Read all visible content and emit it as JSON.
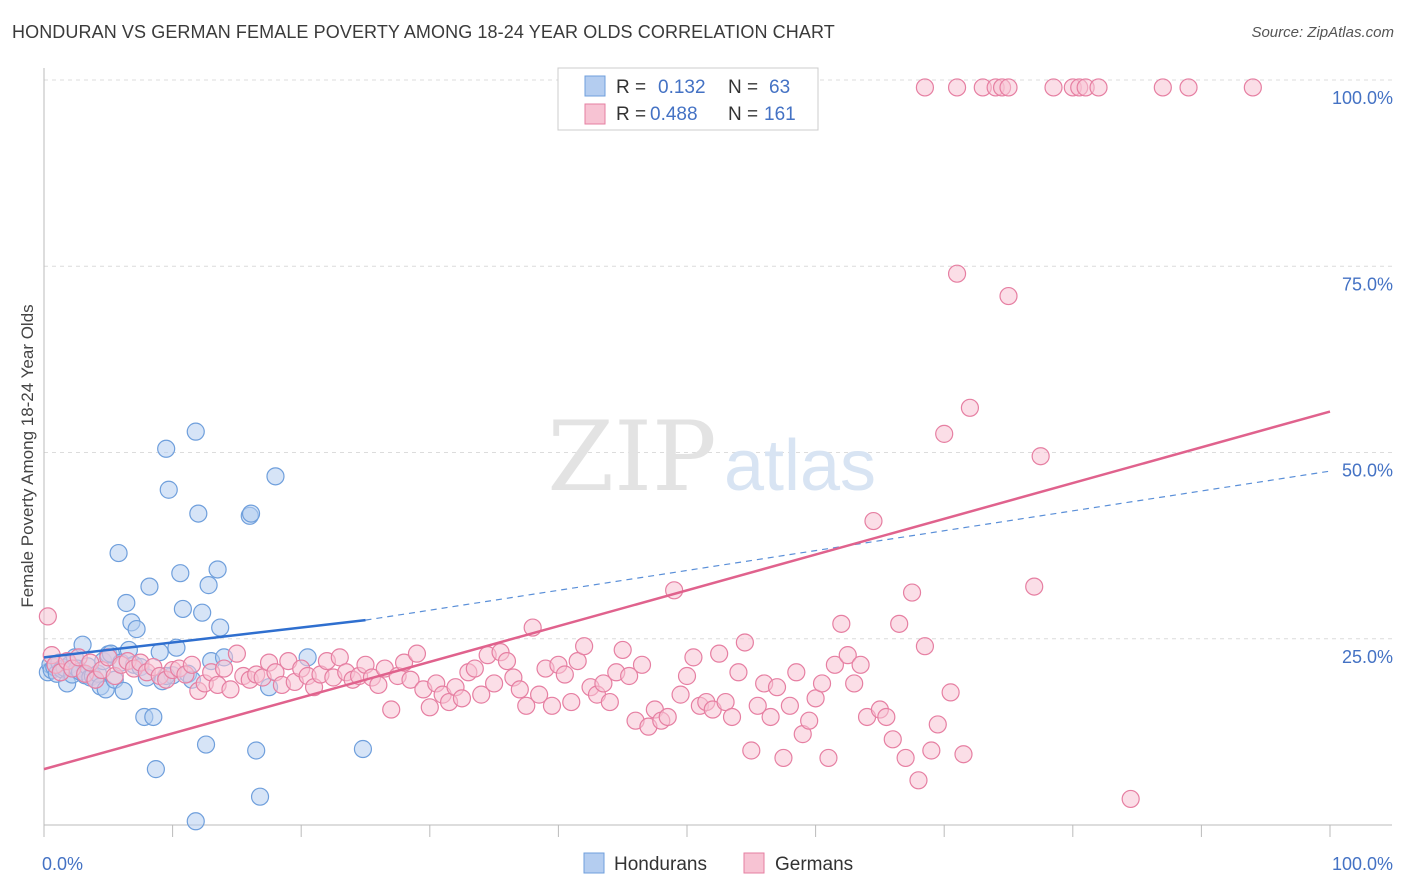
{
  "title": "HONDURAN VS GERMAN FEMALE POVERTY AMONG 18-24 YEAR OLDS CORRELATION CHART",
  "source": "Source: ZipAtlas.com",
  "watermark": {
    "zip": "ZIP",
    "atlas": "atlas"
  },
  "chart_data": {
    "type": "scatter",
    "ylabel": "Female Poverty Among 18-24 Year Olds",
    "xlim": [
      0,
      100
    ],
    "ylim": [
      0,
      100
    ],
    "x_ticks": [
      "0.0%",
      "100.0%"
    ],
    "y_ticks": [
      {
        "value": 100,
        "label": "100.0%"
      },
      {
        "value": 75,
        "label": "75.0%"
      },
      {
        "value": 50,
        "label": "50.0%"
      },
      {
        "value": 25,
        "label": "25.0%"
      }
    ],
    "grid": true,
    "legend": {
      "placement": "top-center",
      "r_label": "R =",
      "n_label": "N =",
      "entries": [
        {
          "series": "Hondurans",
          "r": "0.132",
          "n": "63"
        },
        {
          "series": "Germans",
          "r": "0.488",
          "n": "161"
        }
      ]
    },
    "series": [
      {
        "name": "Hondurans",
        "color": "#6f9fdc",
        "fill": "#b4cdf0",
        "trend": {
          "x0": 0,
          "y0": 22.5,
          "x1": 25,
          "y1": 27.5,
          "dashed_to": 100,
          "dashed_y1": 47.5
        },
        "points": [
          [
            0.3,
            20.5
          ],
          [
            0.5,
            21.5
          ],
          [
            0.6,
            20.8
          ],
          [
            0.8,
            21.2
          ],
          [
            1.0,
            20.3
          ],
          [
            1.2,
            21.8
          ],
          [
            1.4,
            20.9
          ],
          [
            1.6,
            21.1
          ],
          [
            1.8,
            19.0
          ],
          [
            2.0,
            21.5
          ],
          [
            2.2,
            20.2
          ],
          [
            2.4,
            22.5
          ],
          [
            2.6,
            21.0
          ],
          [
            2.8,
            20.6
          ],
          [
            3.0,
            24.2
          ],
          [
            3.2,
            20.1
          ],
          [
            3.4,
            21.3
          ],
          [
            3.6,
            19.8
          ],
          [
            3.8,
            20.0
          ],
          [
            4.0,
            19.5
          ],
          [
            4.2,
            20.3
          ],
          [
            4.4,
            18.6
          ],
          [
            4.6,
            22.0
          ],
          [
            4.8,
            18.2
          ],
          [
            5.0,
            22.9
          ],
          [
            5.2,
            23.0
          ],
          [
            5.5,
            19.5
          ],
          [
            5.8,
            36.5
          ],
          [
            6.0,
            21.8
          ],
          [
            6.2,
            18.0
          ],
          [
            6.4,
            29.8
          ],
          [
            6.6,
            23.5
          ],
          [
            6.8,
            27.2
          ],
          [
            7.0,
            21.5
          ],
          [
            7.2,
            26.3
          ],
          [
            7.5,
            21.2
          ],
          [
            7.8,
            14.5
          ],
          [
            8.0,
            19.8
          ],
          [
            8.2,
            32.0
          ],
          [
            8.5,
            14.5
          ],
          [
            8.7,
            7.5
          ],
          [
            9.0,
            23.2
          ],
          [
            9.2,
            19.3
          ],
          [
            9.5,
            50.5
          ],
          [
            9.7,
            45.0
          ],
          [
            10.0,
            20.1
          ],
          [
            10.3,
            23.8
          ],
          [
            10.6,
            33.8
          ],
          [
            10.8,
            29.0
          ],
          [
            11.2,
            20.3
          ],
          [
            11.5,
            19.5
          ],
          [
            11.8,
            0.5
          ],
          [
            12.0,
            41.8
          ],
          [
            12.3,
            28.5
          ],
          [
            12.6,
            10.8
          ],
          [
            12.8,
            32.2
          ],
          [
            13.0,
            22.0
          ],
          [
            13.5,
            34.3
          ],
          [
            13.7,
            26.5
          ],
          [
            14.0,
            22.5
          ],
          [
            16.0,
            41.5
          ],
          [
            16.5,
            10.0
          ],
          [
            16.8,
            3.8
          ],
          [
            17.5,
            18.5
          ],
          [
            18.0,
            46.8
          ],
          [
            20.5,
            22.5
          ],
          [
            24.8,
            10.2
          ],
          [
            16.1,
            41.8
          ],
          [
            11.8,
            52.8
          ],
          [
            9.5,
            20.0
          ]
        ]
      },
      {
        "name": "Germans",
        "color": "#e67fa2",
        "fill": "#f7c3d3",
        "trend": {
          "x0": 0,
          "y0": 7.5,
          "x1": 100,
          "y1": 55.5
        },
        "points": [
          [
            0.3,
            28.0
          ],
          [
            0.6,
            22.8
          ],
          [
            0.9,
            21.5
          ],
          [
            1.3,
            20.5
          ],
          [
            1.8,
            22.0
          ],
          [
            2.2,
            21.0
          ],
          [
            2.7,
            22.5
          ],
          [
            3.2,
            20.3
          ],
          [
            3.6,
            21.8
          ],
          [
            4.0,
            19.5
          ],
          [
            4.5,
            20.8
          ],
          [
            5.0,
            22.5
          ],
          [
            5.5,
            20.0
          ],
          [
            6.0,
            21.5
          ],
          [
            6.5,
            22.0
          ],
          [
            7.0,
            21.0
          ],
          [
            7.5,
            21.8
          ],
          [
            8.0,
            20.5
          ],
          [
            8.5,
            21.2
          ],
          [
            9.0,
            20.0
          ],
          [
            9.5,
            19.5
          ],
          [
            10.0,
            20.8
          ],
          [
            10.5,
            21.0
          ],
          [
            11.0,
            20.2
          ],
          [
            11.5,
            21.5
          ],
          [
            12.0,
            18.0
          ],
          [
            12.5,
            19.0
          ],
          [
            13.0,
            20.5
          ],
          [
            13.5,
            18.8
          ],
          [
            14.0,
            21.0
          ],
          [
            14.5,
            18.2
          ],
          [
            15.0,
            23.0
          ],
          [
            15.5,
            20.0
          ],
          [
            16.0,
            19.5
          ],
          [
            16.5,
            20.2
          ],
          [
            17.0,
            19.8
          ],
          [
            17.5,
            21.8
          ],
          [
            18.0,
            20.5
          ],
          [
            18.5,
            18.8
          ],
          [
            19.0,
            22.0
          ],
          [
            19.5,
            19.2
          ],
          [
            20.0,
            21.0
          ],
          [
            20.5,
            20.0
          ],
          [
            21.0,
            18.5
          ],
          [
            21.5,
            20.2
          ],
          [
            22.0,
            22.0
          ],
          [
            22.5,
            19.8
          ],
          [
            23.0,
            22.5
          ],
          [
            23.5,
            20.5
          ],
          [
            24.0,
            19.5
          ],
          [
            24.5,
            20.0
          ],
          [
            25.0,
            21.5
          ],
          [
            25.5,
            19.8
          ],
          [
            26.0,
            18.8
          ],
          [
            26.5,
            21.0
          ],
          [
            27.0,
            15.5
          ],
          [
            27.5,
            20.0
          ],
          [
            28.0,
            21.8
          ],
          [
            28.5,
            19.5
          ],
          [
            29.0,
            23.0
          ],
          [
            29.5,
            18.2
          ],
          [
            30.0,
            15.8
          ],
          [
            30.5,
            19.0
          ],
          [
            31.0,
            17.5
          ],
          [
            31.5,
            16.5
          ],
          [
            32.0,
            18.5
          ],
          [
            32.5,
            17.0
          ],
          [
            33.0,
            20.5
          ],
          [
            33.5,
            21.0
          ],
          [
            34.0,
            17.5
          ],
          [
            34.5,
            22.8
          ],
          [
            35.0,
            19.0
          ],
          [
            35.5,
            23.2
          ],
          [
            36.0,
            22.0
          ],
          [
            36.5,
            19.8
          ],
          [
            37.0,
            18.2
          ],
          [
            37.5,
            16.0
          ],
          [
            38.0,
            26.5
          ],
          [
            38.5,
            17.5
          ],
          [
            39.0,
            21.0
          ],
          [
            39.5,
            16.0
          ],
          [
            40.0,
            21.5
          ],
          [
            40.5,
            20.2
          ],
          [
            41.0,
            16.5
          ],
          [
            41.5,
            22.0
          ],
          [
            42.0,
            24.0
          ],
          [
            42.5,
            18.5
          ],
          [
            43.0,
            17.5
          ],
          [
            43.5,
            19.0
          ],
          [
            44.0,
            16.5
          ],
          [
            44.5,
            20.5
          ],
          [
            45.0,
            23.5
          ],
          [
            45.5,
            20.0
          ],
          [
            46.0,
            14.0
          ],
          [
            46.5,
            21.5
          ],
          [
            47.0,
            13.2
          ],
          [
            47.5,
            15.5
          ],
          [
            48.0,
            14.0
          ],
          [
            48.5,
            14.5
          ],
          [
            49.0,
            31.5
          ],
          [
            49.5,
            17.5
          ],
          [
            50.0,
            20.0
          ],
          [
            50.5,
            22.5
          ],
          [
            51.0,
            16.0
          ],
          [
            51.5,
            16.5
          ],
          [
            52.0,
            15.5
          ],
          [
            52.5,
            23.0
          ],
          [
            53.0,
            16.5
          ],
          [
            53.5,
            14.5
          ],
          [
            54.0,
            20.5
          ],
          [
            54.5,
            24.5
          ],
          [
            55.0,
            10.0
          ],
          [
            55.5,
            16.0
          ],
          [
            56.0,
            19.0
          ],
          [
            56.5,
            14.5
          ],
          [
            57.0,
            18.5
          ],
          [
            57.5,
            9.0
          ],
          [
            58.0,
            16.0
          ],
          [
            58.5,
            20.5
          ],
          [
            59.0,
            12.2
          ],
          [
            59.5,
            14.0
          ],
          [
            60.0,
            17.0
          ],
          [
            60.5,
            19.0
          ],
          [
            61.0,
            9.0
          ],
          [
            61.5,
            21.5
          ],
          [
            62.0,
            27.0
          ],
          [
            62.5,
            22.8
          ],
          [
            63.0,
            19.0
          ],
          [
            63.5,
            21.5
          ],
          [
            64.0,
            14.5
          ],
          [
            64.5,
            40.8
          ],
          [
            65.0,
            15.5
          ],
          [
            65.5,
            14.5
          ],
          [
            66.0,
            11.5
          ],
          [
            66.5,
            27.0
          ],
          [
            67.0,
            9.0
          ],
          [
            67.5,
            31.2
          ],
          [
            68.0,
            6.0
          ],
          [
            68.5,
            24.0
          ],
          [
            69.0,
            10.0
          ],
          [
            69.5,
            13.5
          ],
          [
            70.0,
            52.5
          ],
          [
            70.5,
            17.8
          ],
          [
            71.0,
            74.0
          ],
          [
            71.5,
            9.5
          ],
          [
            72.0,
            56.0
          ],
          [
            75.0,
            71.0
          ],
          [
            77.0,
            32.0
          ],
          [
            77.5,
            49.5
          ],
          [
            84.5,
            3.5
          ],
          [
            68.5,
            99.0
          ],
          [
            71.0,
            99.0
          ],
          [
            73.0,
            99.0
          ],
          [
            74.0,
            99.0
          ],
          [
            74.5,
            99.0
          ],
          [
            75.0,
            99.0
          ],
          [
            78.5,
            99.0
          ],
          [
            80.0,
            99.0
          ],
          [
            80.5,
            99.0
          ],
          [
            81.0,
            99.0
          ],
          [
            82.0,
            99.0
          ],
          [
            87.0,
            99.0
          ],
          [
            89.0,
            99.0
          ],
          [
            94.0,
            99.0
          ]
        ]
      }
    ]
  },
  "bottom_legend": [
    {
      "label": "Hondurans"
    },
    {
      "label": "Germans"
    }
  ]
}
